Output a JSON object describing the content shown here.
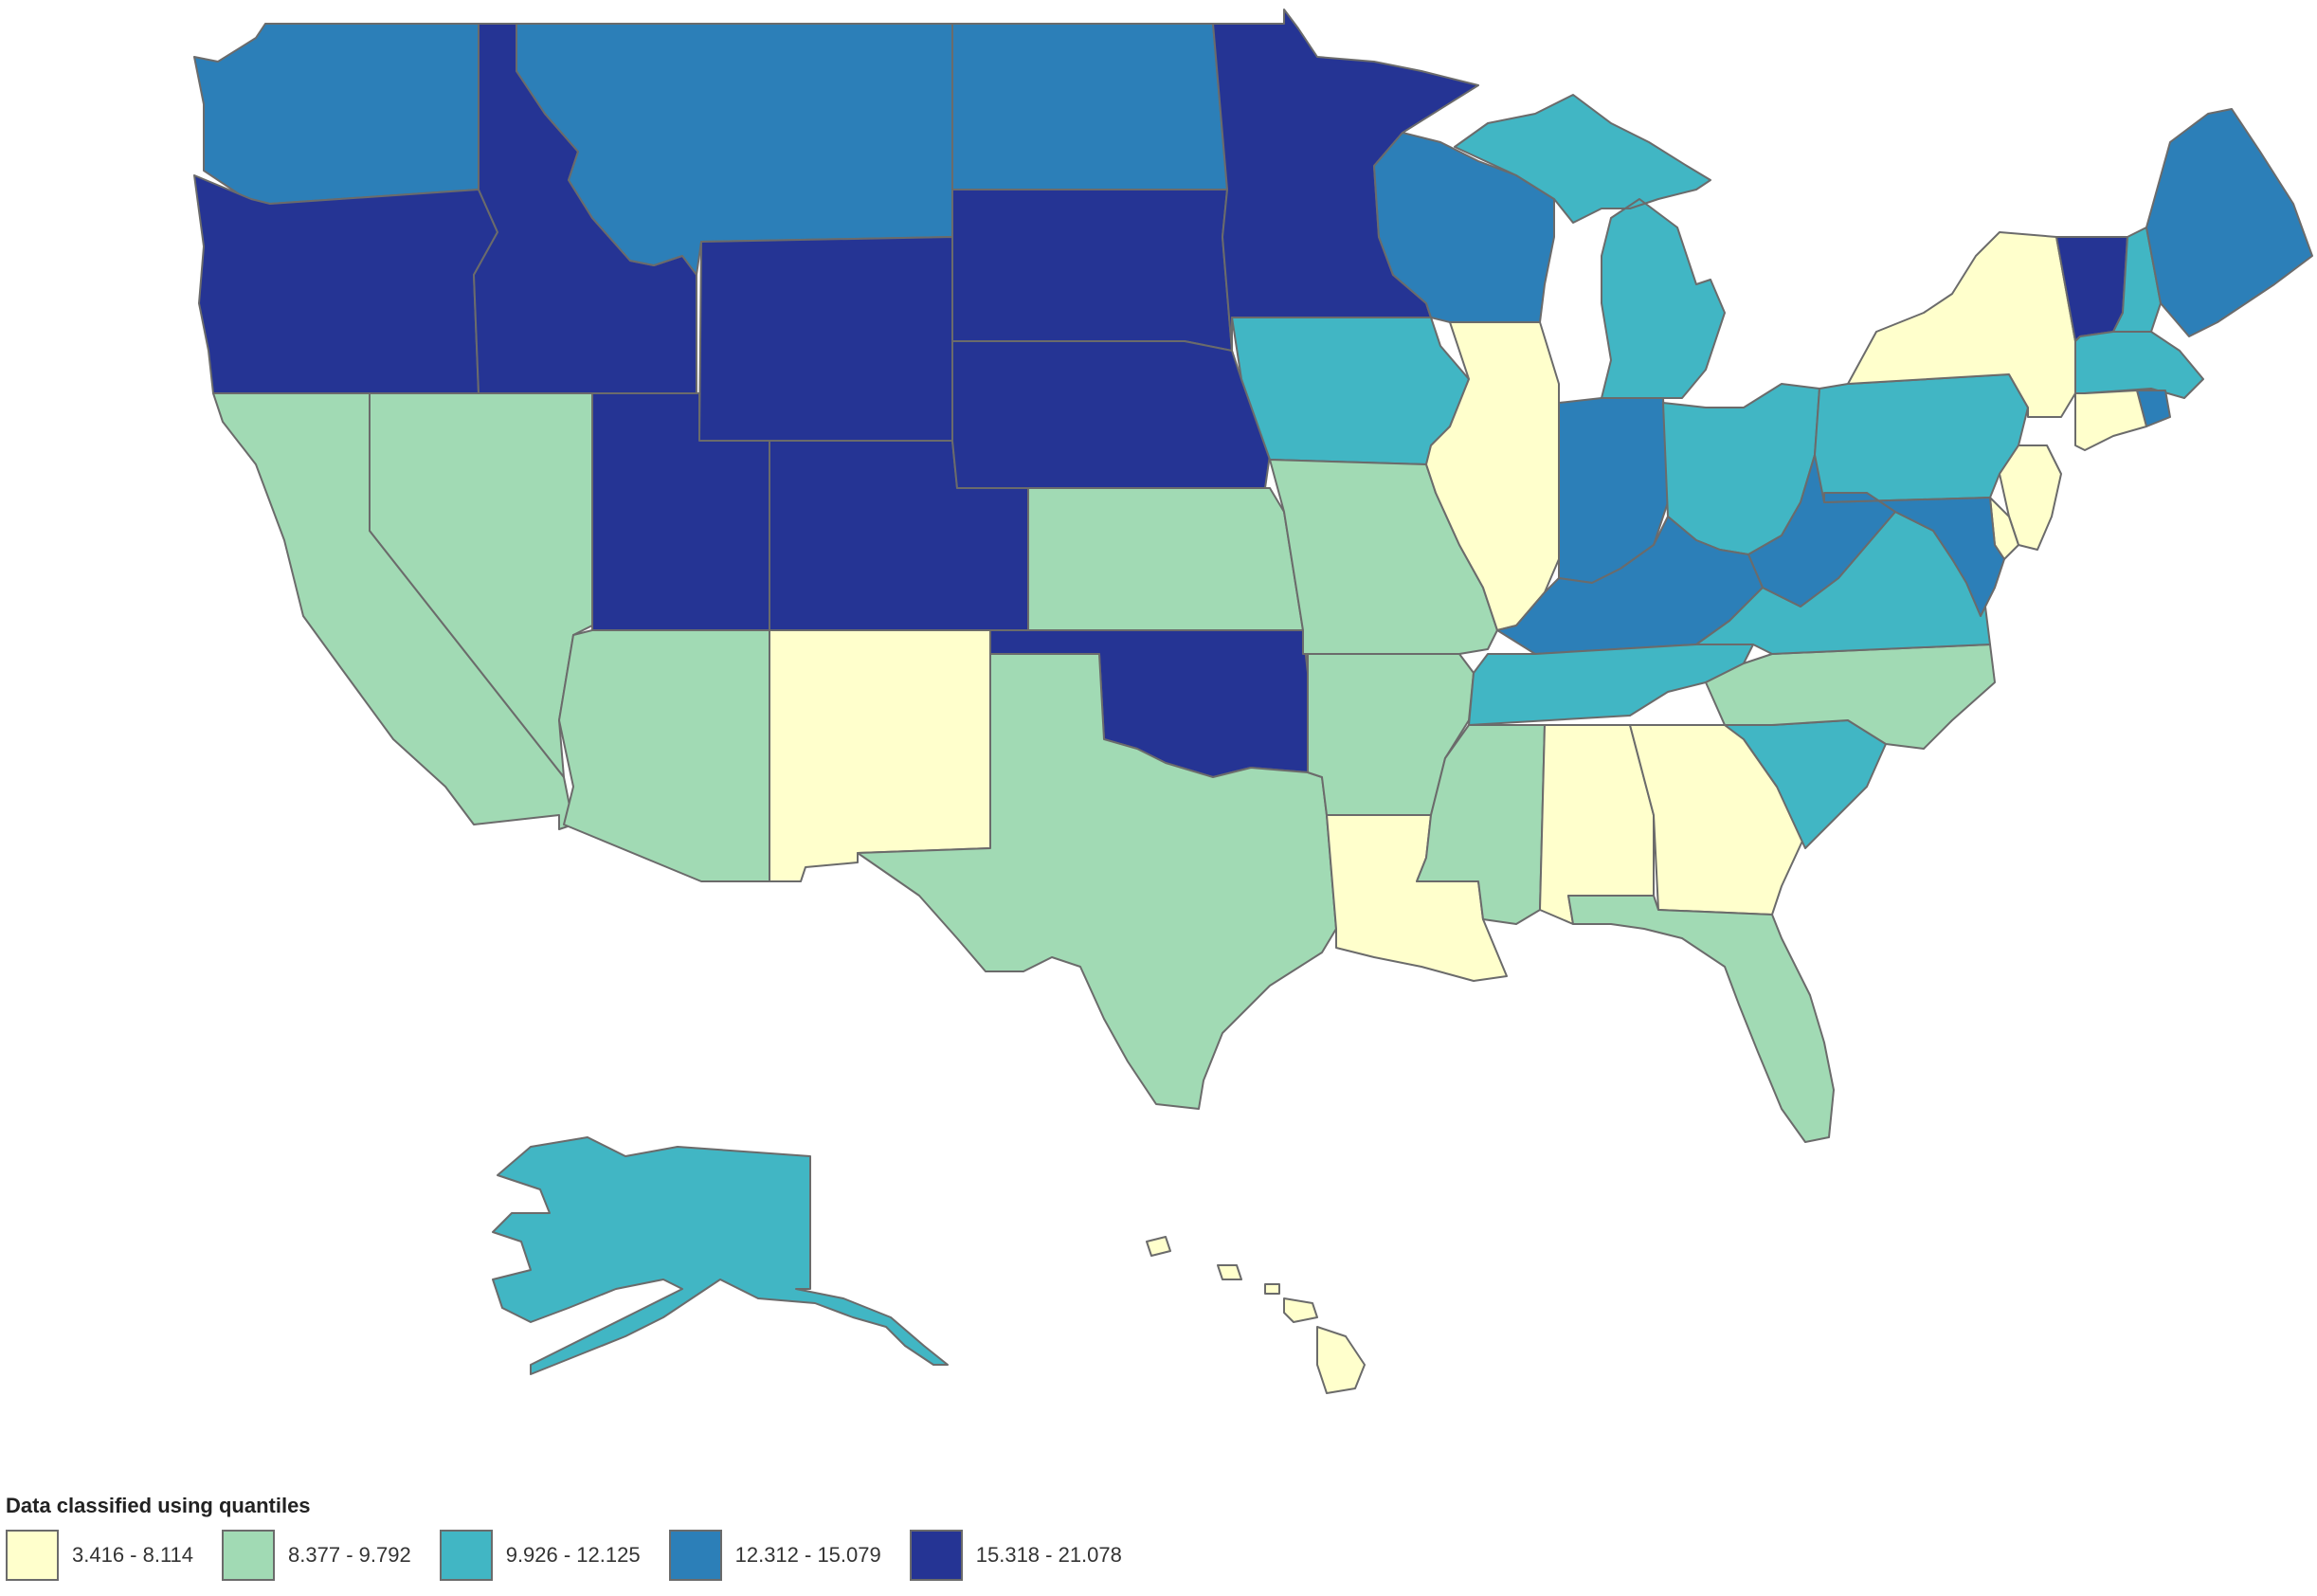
{
  "legend": {
    "title": "Data classified using quantiles",
    "classes": [
      {
        "label": "3.416 - 8.114",
        "color": "#ffffcc"
      },
      {
        "label": "8.377 - 9.792",
        "color": "#a1dab4"
      },
      {
        "label": "9.926 - 12.125",
        "color": "#41b6c4"
      },
      {
        "label": "12.312 - 15.079",
        "color": "#2c7fb8"
      },
      {
        "label": "15.318 - 21.078",
        "color": "#253494"
      }
    ]
  },
  "states": [
    {
      "id": "WA",
      "class": 3
    },
    {
      "id": "OR",
      "class": 4
    },
    {
      "id": "CA",
      "class": 1
    },
    {
      "id": "NV",
      "class": 1
    },
    {
      "id": "ID",
      "class": 4
    },
    {
      "id": "MT",
      "class": 3
    },
    {
      "id": "WY",
      "class": 4
    },
    {
      "id": "UT",
      "class": 4
    },
    {
      "id": "CO",
      "class": 4
    },
    {
      "id": "AZ",
      "class": 1
    },
    {
      "id": "NM",
      "class": 0
    },
    {
      "id": "ND",
      "class": 3
    },
    {
      "id": "SD",
      "class": 4
    },
    {
      "id": "NE",
      "class": 4
    },
    {
      "id": "KS",
      "class": 1
    },
    {
      "id": "OK",
      "class": 4
    },
    {
      "id": "TX",
      "class": 1
    },
    {
      "id": "MN",
      "class": 4
    },
    {
      "id": "IA",
      "class": 2
    },
    {
      "id": "MO",
      "class": 1
    },
    {
      "id": "AR",
      "class": 1
    },
    {
      "id": "LA",
      "class": 0
    },
    {
      "id": "WI",
      "class": 3
    },
    {
      "id": "IL",
      "class": 0
    },
    {
      "id": "MI",
      "class": 2
    },
    {
      "id": "IN",
      "class": 3
    },
    {
      "id": "OH",
      "class": 2
    },
    {
      "id": "KY",
      "class": 3
    },
    {
      "id": "TN",
      "class": 2
    },
    {
      "id": "MS",
      "class": 1
    },
    {
      "id": "AL",
      "class": 0
    },
    {
      "id": "GA",
      "class": 0
    },
    {
      "id": "FL",
      "class": 1
    },
    {
      "id": "SC",
      "class": 2
    },
    {
      "id": "NC",
      "class": 1
    },
    {
      "id": "VA",
      "class": 2
    },
    {
      "id": "WV",
      "class": 3
    },
    {
      "id": "PA",
      "class": 2
    },
    {
      "id": "NY",
      "class": 0
    },
    {
      "id": "VT",
      "class": 4
    },
    {
      "id": "NH",
      "class": 2
    },
    {
      "id": "ME",
      "class": 3
    },
    {
      "id": "MA",
      "class": 2
    },
    {
      "id": "RI",
      "class": 3
    },
    {
      "id": "CT",
      "class": 0
    },
    {
      "id": "NJ",
      "class": 0
    },
    {
      "id": "DE",
      "class": 0
    },
    {
      "id": "MD",
      "class": 3
    },
    {
      "id": "AK",
      "class": 2
    },
    {
      "id": "HI",
      "class": 0
    }
  ]
}
